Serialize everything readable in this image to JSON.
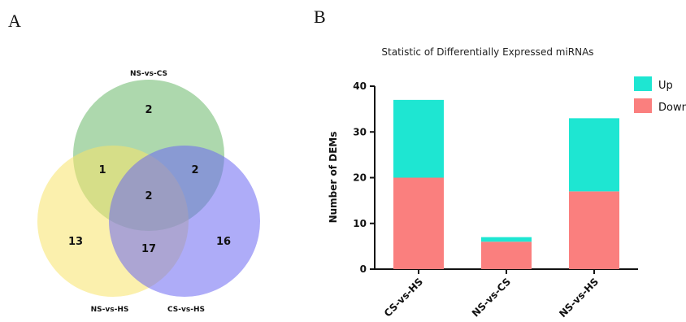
{
  "panels": {
    "a_letter": "A",
    "b_letter": "B"
  },
  "chart_data": [
    {
      "type": "venn",
      "sets": [
        {
          "name": "NS-vs-CS",
          "color": "#6ab86a"
        },
        {
          "name": "NS-vs-HS",
          "color": "#f8e36a"
        },
        {
          "name": "CS-vs-HS",
          "color": "#6b68f2"
        }
      ],
      "regions": [
        {
          "sets": [
            "NS-vs-CS"
          ],
          "value": 2
        },
        {
          "sets": [
            "NS-vs-HS"
          ],
          "value": 13
        },
        {
          "sets": [
            "CS-vs-HS"
          ],
          "value": 16
        },
        {
          "sets": [
            "NS-vs-CS",
            "NS-vs-HS"
          ],
          "value": 1
        },
        {
          "sets": [
            "NS-vs-CS",
            "CS-vs-HS"
          ],
          "value": 2
        },
        {
          "sets": [
            "NS-vs-HS",
            "CS-vs-HS"
          ],
          "value": 17
        },
        {
          "sets": [
            "NS-vs-CS",
            "NS-vs-HS",
            "CS-vs-HS"
          ],
          "value": 2
        }
      ]
    },
    {
      "type": "bar",
      "stacked": true,
      "title": "Statistic of Differentially Expressed miRNAs",
      "ylabel": "Number of DEMs",
      "xlabel": "",
      "categories": [
        "CS-vs-HS",
        "NS-vs-CS",
        "NS-vs-HS"
      ],
      "series": [
        {
          "name": "Down",
          "color": "#fa7f7e",
          "values": [
            20,
            6,
            17
          ]
        },
        {
          "name": "Up",
          "color": "#1ee6d2",
          "values": [
            17,
            1,
            16
          ]
        }
      ],
      "ylim": [
        0,
        40
      ],
      "yticks": [
        0,
        10,
        20,
        30,
        40
      ],
      "legend_order": [
        "Up",
        "Down"
      ],
      "legend_position": "top-right",
      "grid": false
    }
  ]
}
